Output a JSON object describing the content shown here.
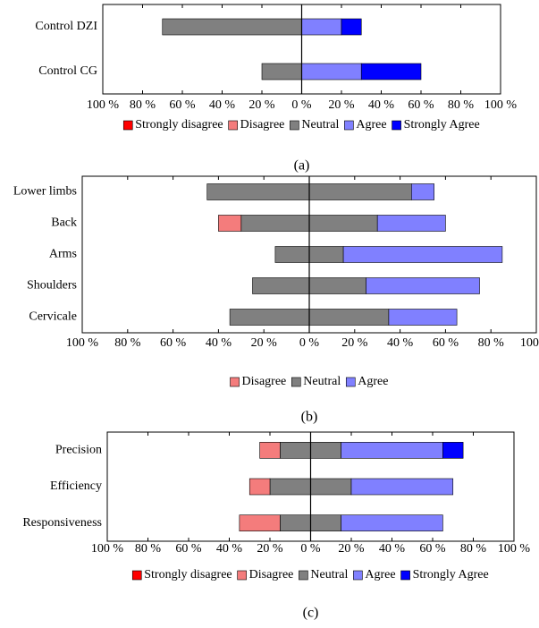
{
  "chart_data": [
    {
      "type": "diverging_bar",
      "neutral_position": "left",
      "categories": [
        "Control DZI",
        "Control CG"
      ],
      "series": [
        {
          "name": "Strongly disagree",
          "color": "#ff0000",
          "values": [
            0,
            0
          ]
        },
        {
          "name": "Disagree",
          "color": "#f47c7c",
          "values": [
            0,
            0
          ]
        },
        {
          "name": "Neutral",
          "color": "#808080",
          "values": [
            70,
            20
          ]
        },
        {
          "name": "Agree",
          "color": "#8080ff",
          "values": [
            20,
            30
          ]
        },
        {
          "name": "Strongly Agree",
          "color": "#0000ff",
          "values": [
            10,
            30
          ]
        }
      ],
      "xlim": [
        -100,
        100
      ],
      "xticks": [
        {
          "value": -100,
          "label": "100 %"
        },
        {
          "value": -80,
          "label": "80 %"
        },
        {
          "value": -60,
          "label": "60 %"
        },
        {
          "value": -40,
          "label": "40 %"
        },
        {
          "value": -20,
          "label": "20 %"
        },
        {
          "value": 0,
          "label": "0 %"
        },
        {
          "value": 20,
          "label": "20 %"
        },
        {
          "value": 40,
          "label": "40 %"
        },
        {
          "value": 60,
          "label": "60 %"
        },
        {
          "value": 80,
          "label": "80 %"
        },
        {
          "value": 100,
          "label": "100 %"
        }
      ],
      "caption": "(a)"
    },
    {
      "type": "diverging_bar",
      "neutral_position": "center",
      "categories": [
        "Lower limbs",
        "Back",
        "Arms",
        "Shoulders",
        "Cervicale"
      ],
      "series": [
        {
          "name": "Disagree",
          "color": "#f47c7c",
          "values": [
            0,
            10,
            0,
            0,
            0
          ]
        },
        {
          "name": "Neutral",
          "color": "#808080",
          "values": [
            90,
            60,
            30,
            50,
            70
          ]
        },
        {
          "name": "Agree",
          "color": "#8080ff",
          "values": [
            10,
            30,
            70,
            50,
            30
          ]
        }
      ],
      "xlim": [
        -100,
        100
      ],
      "xticks": [
        {
          "value": -100,
          "label": "100 %"
        },
        {
          "value": -80,
          "label": "80 %"
        },
        {
          "value": -60,
          "label": "60 %"
        },
        {
          "value": -40,
          "label": "40 %"
        },
        {
          "value": -20,
          "label": "20 %"
        },
        {
          "value": 0,
          "label": "0 %"
        },
        {
          "value": 20,
          "label": "20 %"
        },
        {
          "value": 40,
          "label": "40 %"
        },
        {
          "value": 60,
          "label": "60 %"
        },
        {
          "value": 80,
          "label": "80 %"
        },
        {
          "value": 100,
          "label": "100 %"
        }
      ],
      "caption": "(b)"
    },
    {
      "type": "diverging_bar",
      "neutral_position": "center",
      "categories": [
        "Precision",
        "Efficiency",
        "Responsiveness"
      ],
      "series": [
        {
          "name": "Strongly disagree",
          "color": "#ff0000",
          "values": [
            0,
            0,
            0
          ]
        },
        {
          "name": "Disagree",
          "color": "#f47c7c",
          "values": [
            10,
            10,
            20
          ]
        },
        {
          "name": "Neutral",
          "color": "#808080",
          "values": [
            30,
            40,
            30
          ]
        },
        {
          "name": "Agree",
          "color": "#8080ff",
          "values": [
            50,
            50,
            50
          ]
        },
        {
          "name": "Strongly Agree",
          "color": "#0000ff",
          "values": [
            10,
            0,
            0
          ]
        }
      ],
      "xlim": [
        -100,
        100
      ],
      "xticks": [
        {
          "value": -100,
          "label": "100 %"
        },
        {
          "value": -80,
          "label": "80 %"
        },
        {
          "value": -60,
          "label": "60 %"
        },
        {
          "value": -40,
          "label": "40 %"
        },
        {
          "value": -20,
          "label": "20 %"
        },
        {
          "value": 0,
          "label": "0 %"
        },
        {
          "value": 20,
          "label": "20 %"
        },
        {
          "value": 40,
          "label": "40 %"
        },
        {
          "value": 60,
          "label": "60 %"
        },
        {
          "value": 80,
          "label": "80 %"
        },
        {
          "value": 100,
          "label": "100 %"
        }
      ],
      "caption": "(c)"
    }
  ]
}
